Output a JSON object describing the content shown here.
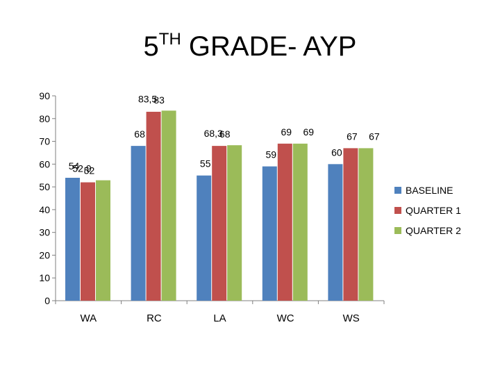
{
  "chart_data": {
    "type": "bar",
    "title": "5",
    "title_superscript": "TH",
    "title_rest": " GRADE- AYP",
    "categories": [
      "WA",
      "RC",
      "LA",
      "WC",
      "WS"
    ],
    "ylim": [
      0,
      90
    ],
    "yticks": [
      0,
      10,
      20,
      30,
      40,
      50,
      60,
      70,
      80,
      90
    ],
    "grid": false,
    "legend_position": "right",
    "series": [
      {
        "name": "BASELINE",
        "color": "#4F81BD",
        "values": [
          54,
          68,
          55,
          59,
          60
        ],
        "labels": [
          "54",
          "68",
          "55",
          "59",
          "60"
        ]
      },
      {
        "name": "QUARTER 1",
        "color": "#C0504D",
        "values": [
          52,
          83,
          68,
          69,
          67
        ],
        "labels": [
          "52",
          "83",
          "68",
          "69",
          "67"
        ]
      },
      {
        "name": "QUARTER 2",
        "color": "#9BBB59",
        "values": [
          52.9,
          83.5,
          68.3,
          69,
          67
        ],
        "labels": [
          "52,9",
          "83,5",
          "68,3",
          "69",
          "67"
        ]
      }
    ]
  }
}
